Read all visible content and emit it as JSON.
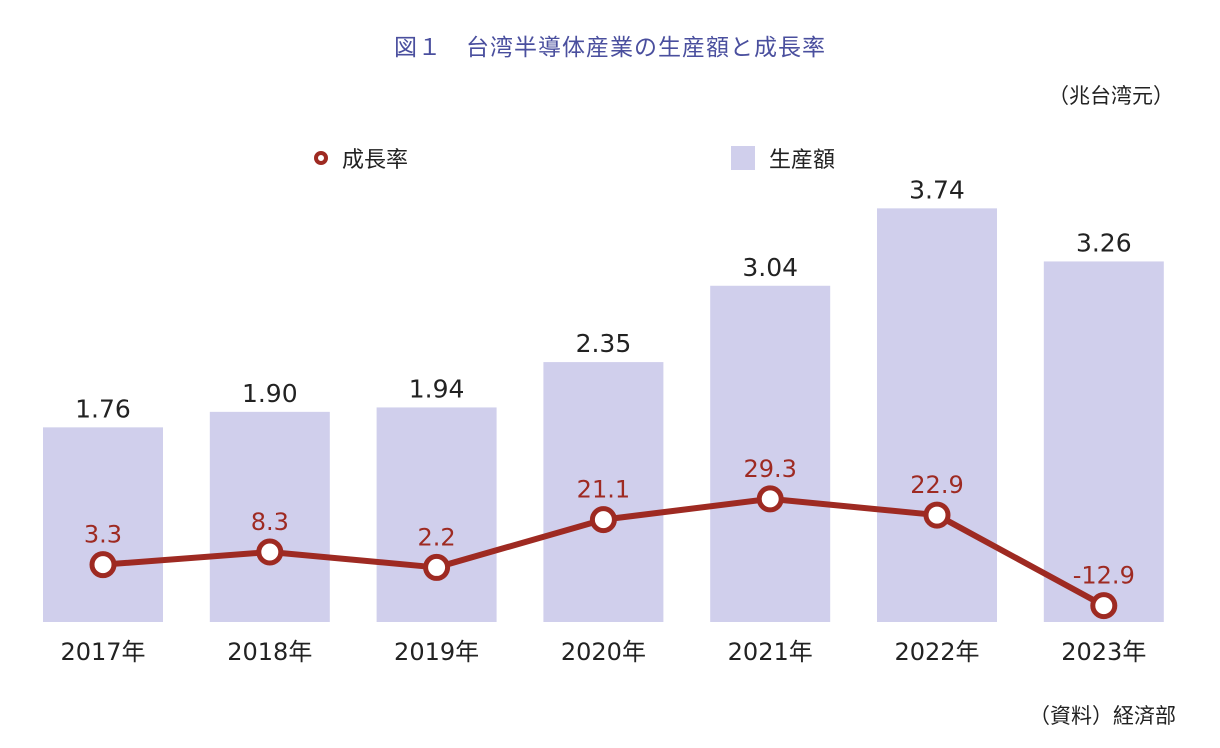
{
  "title": "図１　台湾半導体産業の生産額と成長率",
  "unit_label": "（兆台湾元）",
  "source_label": "（資料）経済部",
  "legend": {
    "rate": "成長率",
    "production": "生産額"
  },
  "colors": {
    "bar": "#d0cfec",
    "line": "#9e2a22",
    "title": "#4a4f9e",
    "text": "#222222"
  },
  "chart_data": {
    "type": "bar",
    "categories": [
      "2017年",
      "2018年",
      "2019年",
      "2020年",
      "2021年",
      "2022年",
      "2023年"
    ],
    "series": [
      {
        "name": "生産額",
        "type": "bar",
        "values": [
          1.76,
          1.9,
          1.94,
          2.35,
          3.04,
          3.74,
          3.26
        ],
        "labels": [
          "1.76",
          "1.90",
          "1.94",
          "2.35",
          "3.04",
          "3.74",
          "3.26"
        ]
      },
      {
        "name": "成長率",
        "type": "line",
        "values": [
          3.3,
          8.3,
          2.2,
          21.1,
          29.3,
          22.9,
          -12.9
        ],
        "labels": [
          "3.3",
          "8.3",
          "2.2",
          "21.1",
          "29.3",
          "22.9",
          "-12.9"
        ]
      }
    ]
  }
}
